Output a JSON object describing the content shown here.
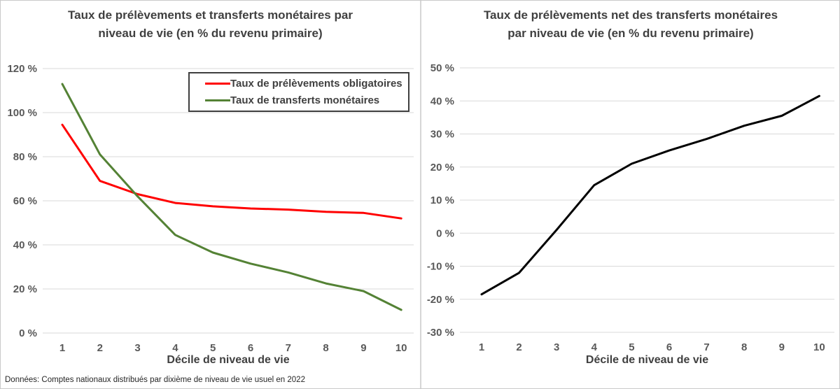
{
  "style": {
    "grid_color": "#d9d9d9",
    "axis_text_color": "#595959",
    "title_color": "#404040",
    "red": "#ff0000",
    "green": "#548235",
    "black": "#000000"
  },
  "chart_data": [
    {
      "type": "line",
      "title": "Taux de prélèvements et transferts monétaires par niveau de vie (en % du revenu primaire)",
      "title_lines": [
        "Taux de prélèvements et transferts monétaires par",
        "niveau de vie (en % du revenu primaire)"
      ],
      "xlabel": "Décile de niveau de vie",
      "footnote": "Données: Comptes nationaux distribués par dixième de niveau de vie usuel en 2022",
      "x": [
        1,
        2,
        3,
        4,
        5,
        6,
        7,
        8,
        9,
        10
      ],
      "series": [
        {
          "name": "Taux de prélèvements obligatoires",
          "color": "#ff0000",
          "values": [
            94.5,
            69,
            63,
            59,
            57.5,
            56.5,
            56,
            55,
            54.5,
            52
          ]
        },
        {
          "name": "Taux de transferts monétaires",
          "color": "#548235",
          "values": [
            113,
            81,
            62,
            44.5,
            36.5,
            31.5,
            27.5,
            22.5,
            19,
            10.5
          ]
        }
      ],
      "ylim": [
        0,
        120
      ],
      "ytick_step": 20,
      "ytick_suffix": " %",
      "grid": true,
      "legend_position": "upper right"
    },
    {
      "type": "line",
      "title": "Taux de prélèvements net des transferts monétaires par niveau de vie (en % du revenu primaire)",
      "title_lines": [
        "Taux de prélèvements net des transferts monétaires",
        "par niveau de vie (en % du revenu primaire)"
      ],
      "xlabel": "Décile de niveau de vie",
      "x": [
        1,
        2,
        3,
        4,
        5,
        6,
        7,
        8,
        9,
        10
      ],
      "series": [
        {
          "name": "Taux de prélèvements net des transferts monétaires",
          "color": "#000000",
          "values": [
            -18.5,
            -12,
            1,
            14.5,
            21,
            25,
            28.5,
            32.5,
            35.5,
            41.5
          ]
        }
      ],
      "ylim": [
        -30,
        50
      ],
      "ytick_step": 10,
      "ytick_suffix": " %",
      "grid": true,
      "legend_position": "none"
    }
  ]
}
